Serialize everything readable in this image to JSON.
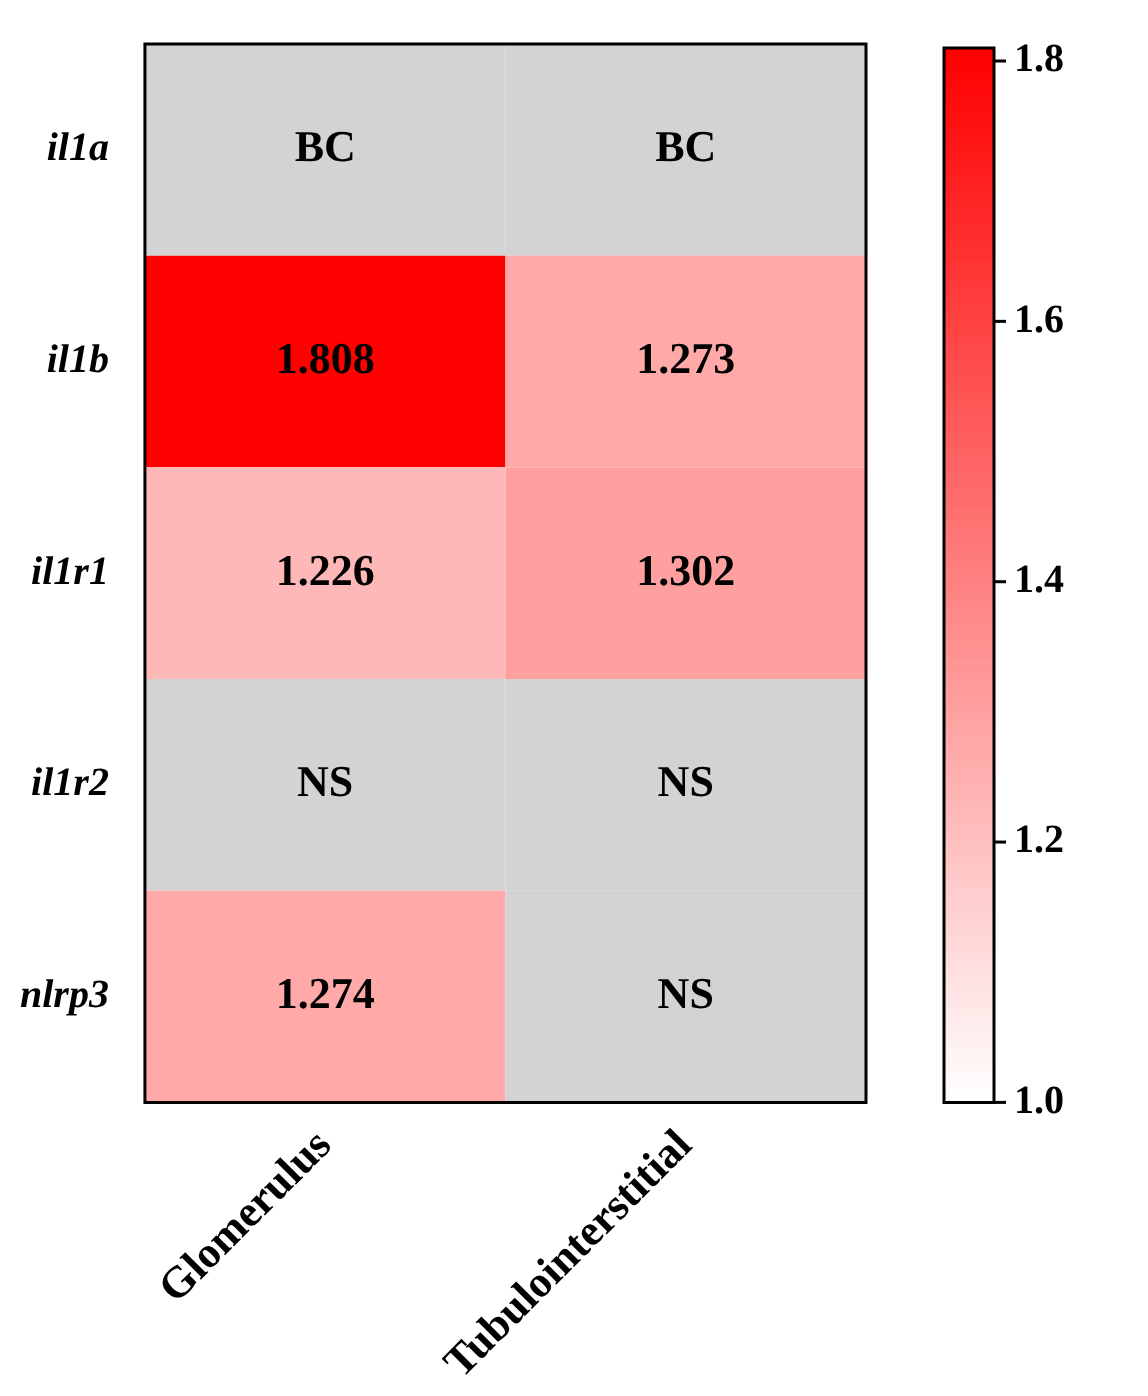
{
  "chart_data": {
    "type": "heatmap",
    "categories": [
      "Glomerulus",
      "Tubulointerstitial"
    ],
    "y_categories": [
      "il1a",
      "il1b",
      "il1r1",
      "il1r2",
      "nlrp3"
    ],
    "cells": [
      [
        null,
        null
      ],
      [
        1.808,
        1.273
      ],
      [
        1.226,
        1.302
      ],
      [
        null,
        null
      ],
      [
        1.274,
        null
      ]
    ],
    "cell_labels": [
      [
        "BC",
        "BC"
      ],
      [
        "1.808",
        "1.273"
      ],
      [
        "1.226",
        "1.302"
      ],
      [
        "NS",
        "NS"
      ],
      [
        "1.274",
        "NS"
      ]
    ],
    "data_labels": true,
    "clim": [
      1.0,
      1.81
    ],
    "cticks": [
      {
        "value": 1,
        "label": "1.0"
      },
      1.2,
      1.4,
      1.6,
      1.8
    ]
  }
}
